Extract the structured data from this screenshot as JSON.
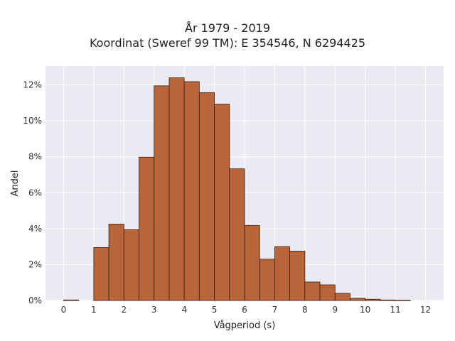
{
  "chart_data": {
    "type": "bar",
    "title": "År 1979 - 2019",
    "subtitle": "Koordinat (Sweref 99 TM): E 354546, N 6294425",
    "xlabel": "Vågperiod (s)",
    "ylabel": "Andel",
    "xlim": [
      -0.6,
      12.6
    ],
    "ylim": [
      0,
      0.1305
    ],
    "x_ticks": [
      0,
      1,
      2,
      3,
      4,
      5,
      6,
      7,
      8,
      9,
      10,
      11,
      12
    ],
    "x_tick_labels": [
      "0",
      "1",
      "2",
      "3",
      "4",
      "5",
      "6",
      "7",
      "8",
      "9",
      "10",
      "11",
      "12"
    ],
    "y_ticks": [
      0,
      0.02,
      0.04,
      0.06,
      0.08,
      0.1,
      0.12
    ],
    "y_tick_labels": [
      "0%",
      "2%",
      "4%",
      "6%",
      "8%",
      "10%",
      "12%"
    ],
    "bin_width": 0.5,
    "bins": [
      {
        "x0": 0.0,
        "value": 0.0003
      },
      {
        "x0": 1.0,
        "value": 0.0295
      },
      {
        "x0": 1.5,
        "value": 0.0425
      },
      {
        "x0": 2.0,
        "value": 0.0395
      },
      {
        "x0": 2.5,
        "value": 0.0798
      },
      {
        "x0": 3.0,
        "value": 0.1195
      },
      {
        "x0": 3.5,
        "value": 0.124
      },
      {
        "x0": 4.0,
        "value": 0.1218
      },
      {
        "x0": 4.5,
        "value": 0.1157
      },
      {
        "x0": 5.0,
        "value": 0.1093
      },
      {
        "x0": 5.5,
        "value": 0.0733
      },
      {
        "x0": 6.0,
        "value": 0.0418
      },
      {
        "x0": 6.5,
        "value": 0.023
      },
      {
        "x0": 7.0,
        "value": 0.03
      },
      {
        "x0": 7.5,
        "value": 0.0275
      },
      {
        "x0": 8.0,
        "value": 0.0103
      },
      {
        "x0": 8.5,
        "value": 0.0087
      },
      {
        "x0": 9.0,
        "value": 0.004
      },
      {
        "x0": 9.5,
        "value": 0.0012
      },
      {
        "x0": 10.0,
        "value": 0.0007
      },
      {
        "x0": 10.5,
        "value": 0.0003
      },
      {
        "x0": 11.0,
        "value": 0.0002
      }
    ],
    "grid": true,
    "colors": {
      "bar_fill": "#b86539",
      "bar_edge": "#3a1f10",
      "plot_background": "#eaeaf2",
      "grid": "#ffffff"
    }
  }
}
